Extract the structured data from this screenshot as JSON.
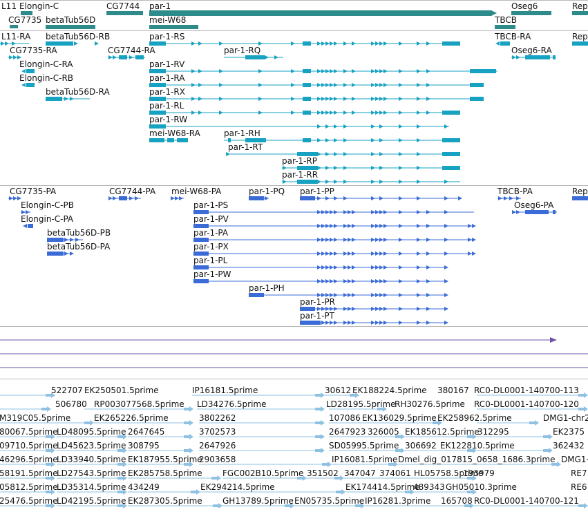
{
  "colors": {
    "gene": "#2e8b8b",
    "transcript": "#17a2c2",
    "protein": "#3a6bd6",
    "line_track": "#6d55a8",
    "est": "#8fc1e3",
    "separator": "#b9b9b9"
  },
  "tracks": {
    "genes": {
      "features": [
        {
          "label": "L11"
        },
        {
          "label": "Elongin-C"
        },
        {
          "label": "CG7735"
        },
        {
          "label": "betaTub56D"
        },
        {
          "label": "CG7744"
        },
        {
          "label": "mei-W68"
        },
        {
          "label": "par-1"
        },
        {
          "label": "TBCB"
        },
        {
          "label": "Oseg6"
        },
        {
          "label": "Rep"
        }
      ]
    },
    "transcripts": {
      "features": [
        {
          "label": "L11-RA"
        },
        {
          "label": "betaTub56D-RB"
        },
        {
          "label": "par-1-RS"
        },
        {
          "label": "TBCB-RA"
        },
        {
          "label": "Rep"
        },
        {
          "label": "CG7735-RA"
        },
        {
          "label": "CG7744-RA"
        },
        {
          "label": "par-1-RQ"
        },
        {
          "label": "Oseg6-RA"
        },
        {
          "label": "Elongin-C-RA"
        },
        {
          "label": "par-1-RV"
        },
        {
          "label": "Elongin-C-RB"
        },
        {
          "label": "par-1-RA"
        },
        {
          "label": "betaTub56D-RA"
        },
        {
          "label": "par-1-RX"
        },
        {
          "label": "par-1-RL"
        },
        {
          "label": "par-1-RW"
        },
        {
          "label": "mei-W68-RA"
        },
        {
          "label": "par-1-RH"
        },
        {
          "label": "par-1-RT"
        },
        {
          "label": "par-1-RP"
        },
        {
          "label": "par-1-RR"
        }
      ]
    },
    "proteins": {
      "features": [
        {
          "label": "CG7735-PA"
        },
        {
          "label": "CG7744-PA"
        },
        {
          "label": "mei-W68-PA"
        },
        {
          "label": "par-1-PQ"
        },
        {
          "label": "par-1-PP"
        },
        {
          "label": "TBCB-PA"
        },
        {
          "label": "Rep"
        },
        {
          "label": "Elongin-C-PB"
        },
        {
          "label": "Oseg6-PA"
        },
        {
          "label": "par-1-PS"
        },
        {
          "label": "Elongin-C-PA"
        },
        {
          "label": "par-1-PV"
        },
        {
          "label": "betaTub56D-PB"
        },
        {
          "label": "par-1-PA"
        },
        {
          "label": "betaTub56D-PA"
        },
        {
          "label": "par-1-PX"
        },
        {
          "label": "par-1-PL"
        },
        {
          "label": "par-1-PW"
        },
        {
          "label": "par-1-PH"
        },
        {
          "label": "par-1-PR"
        },
        {
          "label": "par-1-PT"
        }
      ]
    },
    "ests": {
      "features": [
        {
          "label": "522707"
        },
        {
          "label": "EK250501.5prime"
        },
        {
          "label": "IP16181.5prime"
        },
        {
          "label": "30612"
        },
        {
          "label": "EK188224.5prime"
        },
        {
          "label": "380167"
        },
        {
          "label": "RC0-DL0001-140700-113"
        },
        {
          "label": "506780"
        },
        {
          "label": "RP003077568.5prime"
        },
        {
          "label": "LD34276.5prime"
        },
        {
          "label": "LD28195.5prime"
        },
        {
          "label": "RH30276.5prime"
        },
        {
          "label": "RC0-DL0001-140700-120"
        },
        {
          "label": "M319C05.5prime"
        },
        {
          "label": "EK265226.5prime"
        },
        {
          "label": "3802262"
        },
        {
          "label": "107086"
        },
        {
          "label": "EK136029.5prime"
        },
        {
          "label": "EK258962.5prime"
        },
        {
          "label": "DMG1-chr2"
        },
        {
          "label": "80067.5prime"
        },
        {
          "label": "LD48095.5prime"
        },
        {
          "label": "2647645"
        },
        {
          "label": "3702573"
        },
        {
          "label": "2647923"
        },
        {
          "label": "326005"
        },
        {
          "label": "EK185612.5prime"
        },
        {
          "label": "312295"
        },
        {
          "label": "EK2375"
        },
        {
          "label": "09710.5prime"
        },
        {
          "label": "LD45623.5prime"
        },
        {
          "label": "308795"
        },
        {
          "label": "2647926"
        },
        {
          "label": "SD05995.5prime"
        },
        {
          "label": "306692"
        },
        {
          "label": "EK122810.5prime"
        },
        {
          "label": "362432"
        },
        {
          "label": "46296.5prime"
        },
        {
          "label": "LD33940.5prime"
        },
        {
          "label": "EK187955.5prime"
        },
        {
          "label": "2903658"
        },
        {
          "label": "IP16081.5prime"
        },
        {
          "label": "Dmel_dig_017815_0658_1686.3prime"
        },
        {
          "label": "DMG1-"
        },
        {
          "label": "58191.5prime"
        },
        {
          "label": "LD27543.5prime"
        },
        {
          "label": "EK285758.5prime"
        },
        {
          "label": "FGC002B10.5prime"
        },
        {
          "label": "351502"
        },
        {
          "label": "347047"
        },
        {
          "label": "374061"
        },
        {
          "label": "HL05758.5prime"
        },
        {
          "label": "193979"
        },
        {
          "label": "RE7"
        },
        {
          "label": "05812.5prime"
        },
        {
          "label": "LD35314.5prime"
        },
        {
          "label": "434249"
        },
        {
          "label": "EK294214.5prime"
        },
        {
          "label": "EK174414.5prime"
        },
        {
          "label": "489343"
        },
        {
          "label": "GH05010.3prime"
        },
        {
          "label": "RE6"
        },
        {
          "label": "25476.5prime"
        },
        {
          "label": "LD42195.5prime"
        },
        {
          "label": "EK287305.5prime"
        },
        {
          "label": "GH13789.5prime"
        },
        {
          "label": "EN05735.5prime"
        },
        {
          "label": "IP16281.3prime"
        },
        {
          "label": "165708"
        },
        {
          "label": "RC0-DL0001-140700-121"
        }
      ]
    }
  }
}
